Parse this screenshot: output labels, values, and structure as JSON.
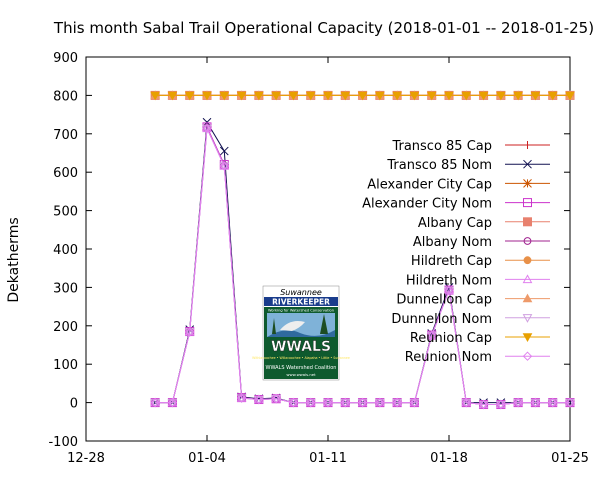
{
  "chart_data": {
    "type": "line",
    "title": "This month Sabal Trail Operational Capacity (2018-01-01 -- 2018-01-25)",
    "xlabel": "",
    "ylabel": "Dekatherms",
    "xlim": [
      "2017-12-28",
      "2018-01-25"
    ],
    "ylim": [
      -100,
      900
    ],
    "xticks": [
      {
        "date": "2017-12-28",
        "label": "12-28"
      },
      {
        "date": "2018-01-04",
        "label": "01-04"
      },
      {
        "date": "2018-01-11",
        "label": "01-11"
      },
      {
        "date": "2018-01-18",
        "label": "01-18"
      },
      {
        "date": "2018-01-25",
        "label": "01-25"
      }
    ],
    "yticks": [
      -100,
      0,
      100,
      200,
      300,
      400,
      500,
      600,
      700,
      800,
      900
    ],
    "grid": false,
    "legend_position": "right",
    "x": [
      "2018-01-01",
      "2018-01-02",
      "2018-01-03",
      "2018-01-04",
      "2018-01-05",
      "2018-01-06",
      "2018-01-07",
      "2018-01-08",
      "2018-01-09",
      "2018-01-10",
      "2018-01-11",
      "2018-01-12",
      "2018-01-13",
      "2018-01-14",
      "2018-01-15",
      "2018-01-16",
      "2018-01-17",
      "2018-01-18",
      "2018-01-19",
      "2018-01-20",
      "2018-01-21",
      "2018-01-22",
      "2018-01-23",
      "2018-01-24",
      "2018-01-25"
    ],
    "series": [
      {
        "name": "Transco 85 Cap",
        "color": "#cc2222",
        "marker": "plus",
        "values": [
          800,
          800,
          800,
          800,
          800,
          800,
          800,
          800,
          800,
          800,
          800,
          800,
          800,
          800,
          800,
          800,
          800,
          800,
          800,
          800,
          800,
          800,
          800,
          800,
          800
        ]
      },
      {
        "name": "Transco 85 Nom",
        "color": "#101050",
        "marker": "cross",
        "values": [
          0,
          0,
          190,
          730,
          655,
          15,
          10,
          12,
          0,
          0,
          0,
          0,
          0,
          0,
          0,
          0,
          180,
          300,
          0,
          0,
          0,
          0,
          0,
          0,
          0
        ]
      },
      {
        "name": "Alexander City Cap",
        "color": "#cc5500",
        "marker": "star",
        "values": [
          800,
          800,
          800,
          800,
          800,
          800,
          800,
          800,
          800,
          800,
          800,
          800,
          800,
          800,
          800,
          800,
          800,
          800,
          800,
          800,
          800,
          800,
          800,
          800,
          800
        ]
      },
      {
        "name": "Alexander City Nom",
        "color": "#cc33cc",
        "marker": "box",
        "values": [
          0,
          0,
          185,
          718,
          620,
          13,
          8,
          10,
          0,
          0,
          0,
          0,
          0,
          0,
          0,
          0,
          176,
          293,
          0,
          -5,
          -5,
          0,
          0,
          0,
          0
        ]
      },
      {
        "name": "Albany Cap",
        "color": "#e8816e",
        "marker": "boxfill",
        "values": [
          800,
          800,
          800,
          800,
          800,
          800,
          800,
          800,
          800,
          800,
          800,
          800,
          800,
          800,
          800,
          800,
          800,
          800,
          800,
          800,
          800,
          800,
          800,
          800,
          800
        ]
      },
      {
        "name": "Albany Nom",
        "color": "#a0238f",
        "marker": "circle",
        "values": [
          0,
          0,
          185,
          716,
          618,
          13,
          8,
          10,
          0,
          0,
          0,
          0,
          0,
          0,
          0,
          0,
          176,
          293,
          0,
          -5,
          -5,
          0,
          0,
          0,
          0
        ]
      },
      {
        "name": "Hildreth Cap",
        "color": "#e89048",
        "marker": "circlefill",
        "values": [
          800,
          800,
          800,
          800,
          800,
          800,
          800,
          800,
          800,
          800,
          800,
          800,
          800,
          800,
          800,
          800,
          800,
          800,
          800,
          800,
          800,
          800,
          800,
          800,
          800
        ]
      },
      {
        "name": "Hildreth Nom",
        "color": "#e080ee",
        "marker": "triangle",
        "values": [
          0,
          0,
          184,
          714,
          616,
          12,
          8,
          10,
          0,
          0,
          0,
          0,
          0,
          0,
          0,
          0,
          175,
          292,
          0,
          -5,
          -5,
          0,
          0,
          0,
          0
        ]
      },
      {
        "name": "Dunnellon Cap",
        "color": "#ee9a6a",
        "marker": "trianglefill",
        "values": [
          800,
          800,
          800,
          800,
          800,
          800,
          800,
          800,
          800,
          800,
          800,
          800,
          800,
          800,
          800,
          800,
          800,
          800,
          800,
          800,
          800,
          800,
          800,
          800,
          800
        ]
      },
      {
        "name": "Dunnellon Nom",
        "color": "#d0a0e0",
        "marker": "itriangle",
        "values": [
          0,
          0,
          184,
          714,
          616,
          12,
          8,
          10,
          0,
          0,
          0,
          0,
          0,
          0,
          0,
          0,
          175,
          292,
          0,
          -5,
          -5,
          0,
          0,
          0,
          0
        ]
      },
      {
        "name": "Reunion Cap",
        "color": "#e8a000",
        "marker": "itrianglefill",
        "values": [
          800,
          800,
          800,
          800,
          800,
          800,
          800,
          800,
          800,
          800,
          800,
          800,
          800,
          800,
          800,
          800,
          800,
          800,
          800,
          800,
          800,
          800,
          800,
          800,
          800
        ]
      },
      {
        "name": "Reunion Nom",
        "color": "#e080ee",
        "marker": "diamond",
        "values": [
          0,
          0,
          184,
          714,
          616,
          12,
          8,
          10,
          0,
          0,
          0,
          0,
          0,
          0,
          0,
          0,
          175,
          292,
          0,
          -5,
          -5,
          0,
          0,
          0,
          0
        ]
      }
    ]
  },
  "logo": {
    "org": "Suwannee",
    "name": "RIVERKEEPER",
    "tagline": "Working for Watershed Conservation",
    "short": "WWALS",
    "rivers": "Withlacoochee • Willacoochee • Alapaha • Little • Suwannee",
    "coalition": "WWALS Watershed Coalition",
    "url": "www.wwals.net"
  }
}
